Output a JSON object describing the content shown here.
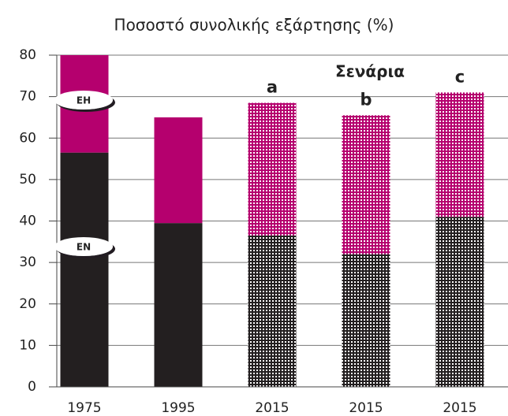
{
  "chart_data": {
    "type": "stacked_bar",
    "title": "Ποσοστό συνολικής εξάρτησης (%)",
    "categories": [
      "1975",
      "1995",
      "2015",
      "2015",
      "2015"
    ],
    "series": [
      {
        "name": "EN",
        "color": "#231f20",
        "values": [
          56.5,
          39.5,
          36.5,
          32,
          41
        ]
      },
      {
        "name": "EH",
        "color": "#b5006e",
        "values": [
          23.5,
          25.5,
          32,
          33.5,
          30
        ]
      }
    ],
    "patterned": [
      false,
      false,
      true,
      true,
      true
    ],
    "annotation": "Σενάρια",
    "bar_labels": [
      null,
      null,
      "a",
      "b",
      "c"
    ],
    "ylim": [
      0,
      80
    ],
    "yticks": [
      0,
      10,
      20,
      30,
      40,
      50,
      60,
      70,
      80
    ],
    "grid": true
  }
}
